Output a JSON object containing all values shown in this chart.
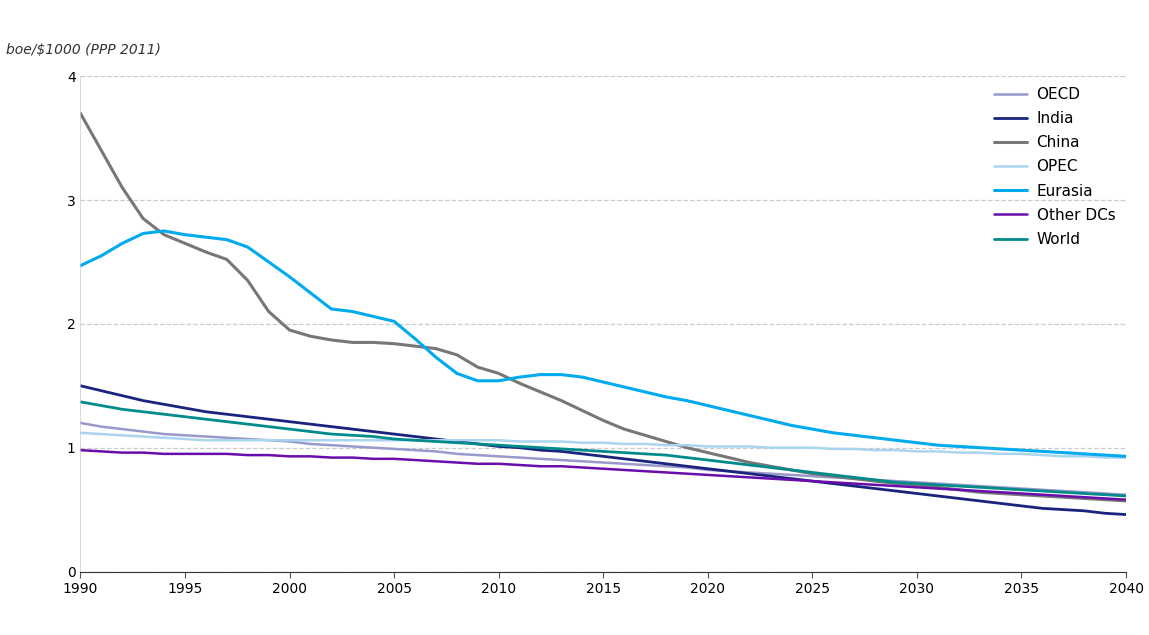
{
  "ylabel": "boe/$1000 (PPP 2011)",
  "ylim": [
    0,
    4
  ],
  "xlim": [
    1990,
    2040
  ],
  "yticks": [
    0,
    1,
    2,
    3,
    4
  ],
  "xticks": [
    1990,
    1995,
    2000,
    2005,
    2010,
    2015,
    2020,
    2025,
    2030,
    2035,
    2040
  ],
  "background_color": "#ffffff",
  "series": [
    {
      "label": "OECD",
      "color": "#9999cc",
      "linewidth": 1.8,
      "years": [
        1990,
        1991,
        1992,
        1993,
        1994,
        1995,
        1996,
        1997,
        1998,
        1999,
        2000,
        2001,
        2002,
        2003,
        2004,
        2005,
        2006,
        2007,
        2008,
        2009,
        2010,
        2011,
        2012,
        2013,
        2014,
        2015,
        2016,
        2017,
        2018,
        2019,
        2020,
        2021,
        2022,
        2023,
        2024,
        2025,
        2026,
        2027,
        2028,
        2029,
        2030,
        2031,
        2032,
        2033,
        2034,
        2035,
        2036,
        2037,
        2038,
        2039,
        2040
      ],
      "values": [
        1.2,
        1.17,
        1.15,
        1.13,
        1.11,
        1.1,
        1.09,
        1.08,
        1.07,
        1.06,
        1.05,
        1.03,
        1.02,
        1.01,
        1.0,
        0.99,
        0.98,
        0.97,
        0.95,
        0.94,
        0.93,
        0.92,
        0.91,
        0.9,
        0.89,
        0.88,
        0.87,
        0.86,
        0.85,
        0.84,
        0.82,
        0.81,
        0.8,
        0.79,
        0.78,
        0.77,
        0.76,
        0.75,
        0.74,
        0.73,
        0.72,
        0.71,
        0.7,
        0.69,
        0.68,
        0.67,
        0.66,
        0.65,
        0.64,
        0.63,
        0.62
      ]
    },
    {
      "label": "India",
      "color": "#1a237e",
      "linewidth": 2.0,
      "years": [
        1990,
        1991,
        1992,
        1993,
        1994,
        1995,
        1996,
        1997,
        1998,
        1999,
        2000,
        2001,
        2002,
        2003,
        2004,
        2005,
        2006,
        2007,
        2008,
        2009,
        2010,
        2011,
        2012,
        2013,
        2014,
        2015,
        2016,
        2017,
        2018,
        2019,
        2020,
        2021,
        2022,
        2023,
        2024,
        2025,
        2026,
        2027,
        2028,
        2029,
        2030,
        2031,
        2032,
        2033,
        2034,
        2035,
        2036,
        2037,
        2038,
        2039,
        2040
      ],
      "values": [
        1.5,
        1.46,
        1.42,
        1.38,
        1.35,
        1.32,
        1.29,
        1.27,
        1.25,
        1.23,
        1.21,
        1.19,
        1.17,
        1.15,
        1.13,
        1.11,
        1.09,
        1.07,
        1.05,
        1.03,
        1.01,
        1.0,
        0.98,
        0.97,
        0.95,
        0.93,
        0.91,
        0.89,
        0.87,
        0.85,
        0.83,
        0.81,
        0.79,
        0.77,
        0.75,
        0.73,
        0.71,
        0.69,
        0.67,
        0.65,
        0.63,
        0.61,
        0.59,
        0.57,
        0.55,
        0.53,
        0.51,
        0.5,
        0.49,
        0.47,
        0.46
      ]
    },
    {
      "label": "China",
      "color": "#777777",
      "linewidth": 2.2,
      "years": [
        1990,
        1991,
        1992,
        1993,
        1994,
        1995,
        1996,
        1997,
        1998,
        1999,
        2000,
        2001,
        2002,
        2003,
        2004,
        2005,
        2006,
        2007,
        2008,
        2009,
        2010,
        2011,
        2012,
        2013,
        2014,
        2015,
        2016,
        2017,
        2018,
        2019,
        2020,
        2021,
        2022,
        2023,
        2024,
        2025,
        2026,
        2027,
        2028,
        2029,
        2030,
        2031,
        2032,
        2033,
        2034,
        2035,
        2036,
        2037,
        2038,
        2039,
        2040
      ],
      "values": [
        3.7,
        3.4,
        3.1,
        2.85,
        2.72,
        2.65,
        2.58,
        2.52,
        2.35,
        2.1,
        1.95,
        1.9,
        1.87,
        1.85,
        1.85,
        1.84,
        1.82,
        1.8,
        1.75,
        1.65,
        1.6,
        1.52,
        1.45,
        1.38,
        1.3,
        1.22,
        1.15,
        1.1,
        1.05,
        1.0,
        0.96,
        0.92,
        0.88,
        0.85,
        0.82,
        0.79,
        0.77,
        0.75,
        0.73,
        0.71,
        0.7,
        0.68,
        0.66,
        0.64,
        0.63,
        0.62,
        0.61,
        0.6,
        0.59,
        0.58,
        0.57
      ]
    },
    {
      "label": "OPEC",
      "color": "#aad4f0",
      "linewidth": 1.8,
      "years": [
        1990,
        1991,
        1992,
        1993,
        1994,
        1995,
        1996,
        1997,
        1998,
        1999,
        2000,
        2001,
        2002,
        2003,
        2004,
        2005,
        2006,
        2007,
        2008,
        2009,
        2010,
        2011,
        2012,
        2013,
        2014,
        2015,
        2016,
        2017,
        2018,
        2019,
        2020,
        2021,
        2022,
        2023,
        2024,
        2025,
        2026,
        2027,
        2028,
        2029,
        2030,
        2031,
        2032,
        2033,
        2034,
        2035,
        2036,
        2037,
        2038,
        2039,
        2040
      ],
      "values": [
        1.12,
        1.11,
        1.1,
        1.09,
        1.08,
        1.07,
        1.06,
        1.06,
        1.06,
        1.06,
        1.06,
        1.06,
        1.06,
        1.06,
        1.06,
        1.06,
        1.06,
        1.06,
        1.06,
        1.06,
        1.06,
        1.05,
        1.05,
        1.05,
        1.04,
        1.04,
        1.03,
        1.03,
        1.02,
        1.02,
        1.01,
        1.01,
        1.01,
        1.0,
        1.0,
        1.0,
        0.99,
        0.99,
        0.98,
        0.98,
        0.97,
        0.97,
        0.96,
        0.96,
        0.95,
        0.95,
        0.94,
        0.93,
        0.93,
        0.92,
        0.92
      ]
    },
    {
      "label": "Eurasia",
      "color": "#00aaee",
      "linewidth": 2.2,
      "years": [
        1990,
        1991,
        1992,
        1993,
        1994,
        1995,
        1996,
        1997,
        1998,
        1999,
        2000,
        2001,
        2002,
        2003,
        2004,
        2005,
        2006,
        2007,
        2008,
        2009,
        2010,
        2011,
        2012,
        2013,
        2014,
        2015,
        2016,
        2017,
        2018,
        2019,
        2020,
        2021,
        2022,
        2023,
        2024,
        2025,
        2026,
        2027,
        2028,
        2029,
        2030,
        2031,
        2032,
        2033,
        2034,
        2035,
        2036,
        2037,
        2038,
        2039,
        2040
      ],
      "values": [
        2.47,
        2.55,
        2.65,
        2.73,
        2.75,
        2.72,
        2.7,
        2.68,
        2.62,
        2.5,
        2.38,
        2.25,
        2.12,
        2.1,
        2.06,
        2.02,
        1.88,
        1.73,
        1.6,
        1.54,
        1.54,
        1.57,
        1.59,
        1.59,
        1.57,
        1.53,
        1.49,
        1.45,
        1.41,
        1.38,
        1.34,
        1.3,
        1.26,
        1.22,
        1.18,
        1.15,
        1.12,
        1.1,
        1.08,
        1.06,
        1.04,
        1.02,
        1.01,
        1.0,
        0.99,
        0.98,
        0.97,
        0.96,
        0.95,
        0.94,
        0.93
      ]
    },
    {
      "label": "Other DCs",
      "color": "#6a0dad",
      "linewidth": 1.8,
      "years": [
        1990,
        1991,
        1992,
        1993,
        1994,
        1995,
        1996,
        1997,
        1998,
        1999,
        2000,
        2001,
        2002,
        2003,
        2004,
        2005,
        2006,
        2007,
        2008,
        2009,
        2010,
        2011,
        2012,
        2013,
        2014,
        2015,
        2016,
        2017,
        2018,
        2019,
        2020,
        2021,
        2022,
        2023,
        2024,
        2025,
        2026,
        2027,
        2028,
        2029,
        2030,
        2031,
        2032,
        2033,
        2034,
        2035,
        2036,
        2037,
        2038,
        2039,
        2040
      ],
      "values": [
        0.98,
        0.97,
        0.96,
        0.96,
        0.95,
        0.95,
        0.95,
        0.95,
        0.94,
        0.94,
        0.93,
        0.93,
        0.92,
        0.92,
        0.91,
        0.91,
        0.9,
        0.89,
        0.88,
        0.87,
        0.87,
        0.86,
        0.85,
        0.85,
        0.84,
        0.83,
        0.82,
        0.81,
        0.8,
        0.79,
        0.78,
        0.77,
        0.76,
        0.75,
        0.74,
        0.73,
        0.72,
        0.71,
        0.7,
        0.69,
        0.68,
        0.67,
        0.66,
        0.65,
        0.64,
        0.63,
        0.62,
        0.61,
        0.6,
        0.59,
        0.58
      ]
    },
    {
      "label": "World",
      "color": "#008b8b",
      "linewidth": 2.0,
      "years": [
        1990,
        1991,
        1992,
        1993,
        1994,
        1995,
        1996,
        1997,
        1998,
        1999,
        2000,
        2001,
        2002,
        2003,
        2004,
        2005,
        2006,
        2007,
        2008,
        2009,
        2010,
        2011,
        2012,
        2013,
        2014,
        2015,
        2016,
        2017,
        2018,
        2019,
        2020,
        2021,
        2022,
        2023,
        2024,
        2025,
        2026,
        2027,
        2028,
        2029,
        2030,
        2031,
        2032,
        2033,
        2034,
        2035,
        2036,
        2037,
        2038,
        2039,
        2040
      ],
      "values": [
        1.37,
        1.34,
        1.31,
        1.29,
        1.27,
        1.25,
        1.23,
        1.21,
        1.19,
        1.17,
        1.15,
        1.13,
        1.11,
        1.1,
        1.09,
        1.07,
        1.06,
        1.05,
        1.04,
        1.03,
        1.02,
        1.01,
        1.0,
        0.99,
        0.98,
        0.97,
        0.96,
        0.95,
        0.94,
        0.92,
        0.9,
        0.88,
        0.86,
        0.84,
        0.82,
        0.8,
        0.78,
        0.76,
        0.74,
        0.72,
        0.71,
        0.7,
        0.69,
        0.68,
        0.67,
        0.66,
        0.65,
        0.64,
        0.63,
        0.62,
        0.61
      ]
    }
  ],
  "legend_loc": "upper right",
  "legend_fontsize": 11,
  "tick_fontsize": 10,
  "grid_color": "#aaaaaa",
  "grid_linestyle": "--",
  "grid_alpha": 0.6,
  "ylabel_fontsize": 10
}
